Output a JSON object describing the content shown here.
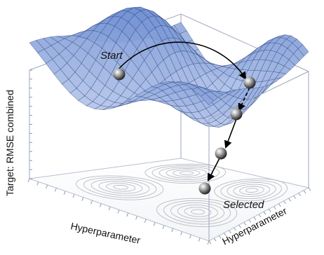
{
  "diagram": {
    "start_label": "Start",
    "selected_label": "Selected",
    "z_axis_label": "Target: RMSE combined",
    "x_axis_label": "Hyperparameter",
    "y_axis_label": "Hyperparameter",
    "colors": {
      "surface_top": "#6f8fd2",
      "surface_low": "#c2d0ee",
      "mesh_line": "#2c3f78",
      "box_line": "#9aa6bd",
      "contour": "#b9bcc4",
      "ball": "#2a2a2a",
      "arrow": "#000000"
    }
  }
}
